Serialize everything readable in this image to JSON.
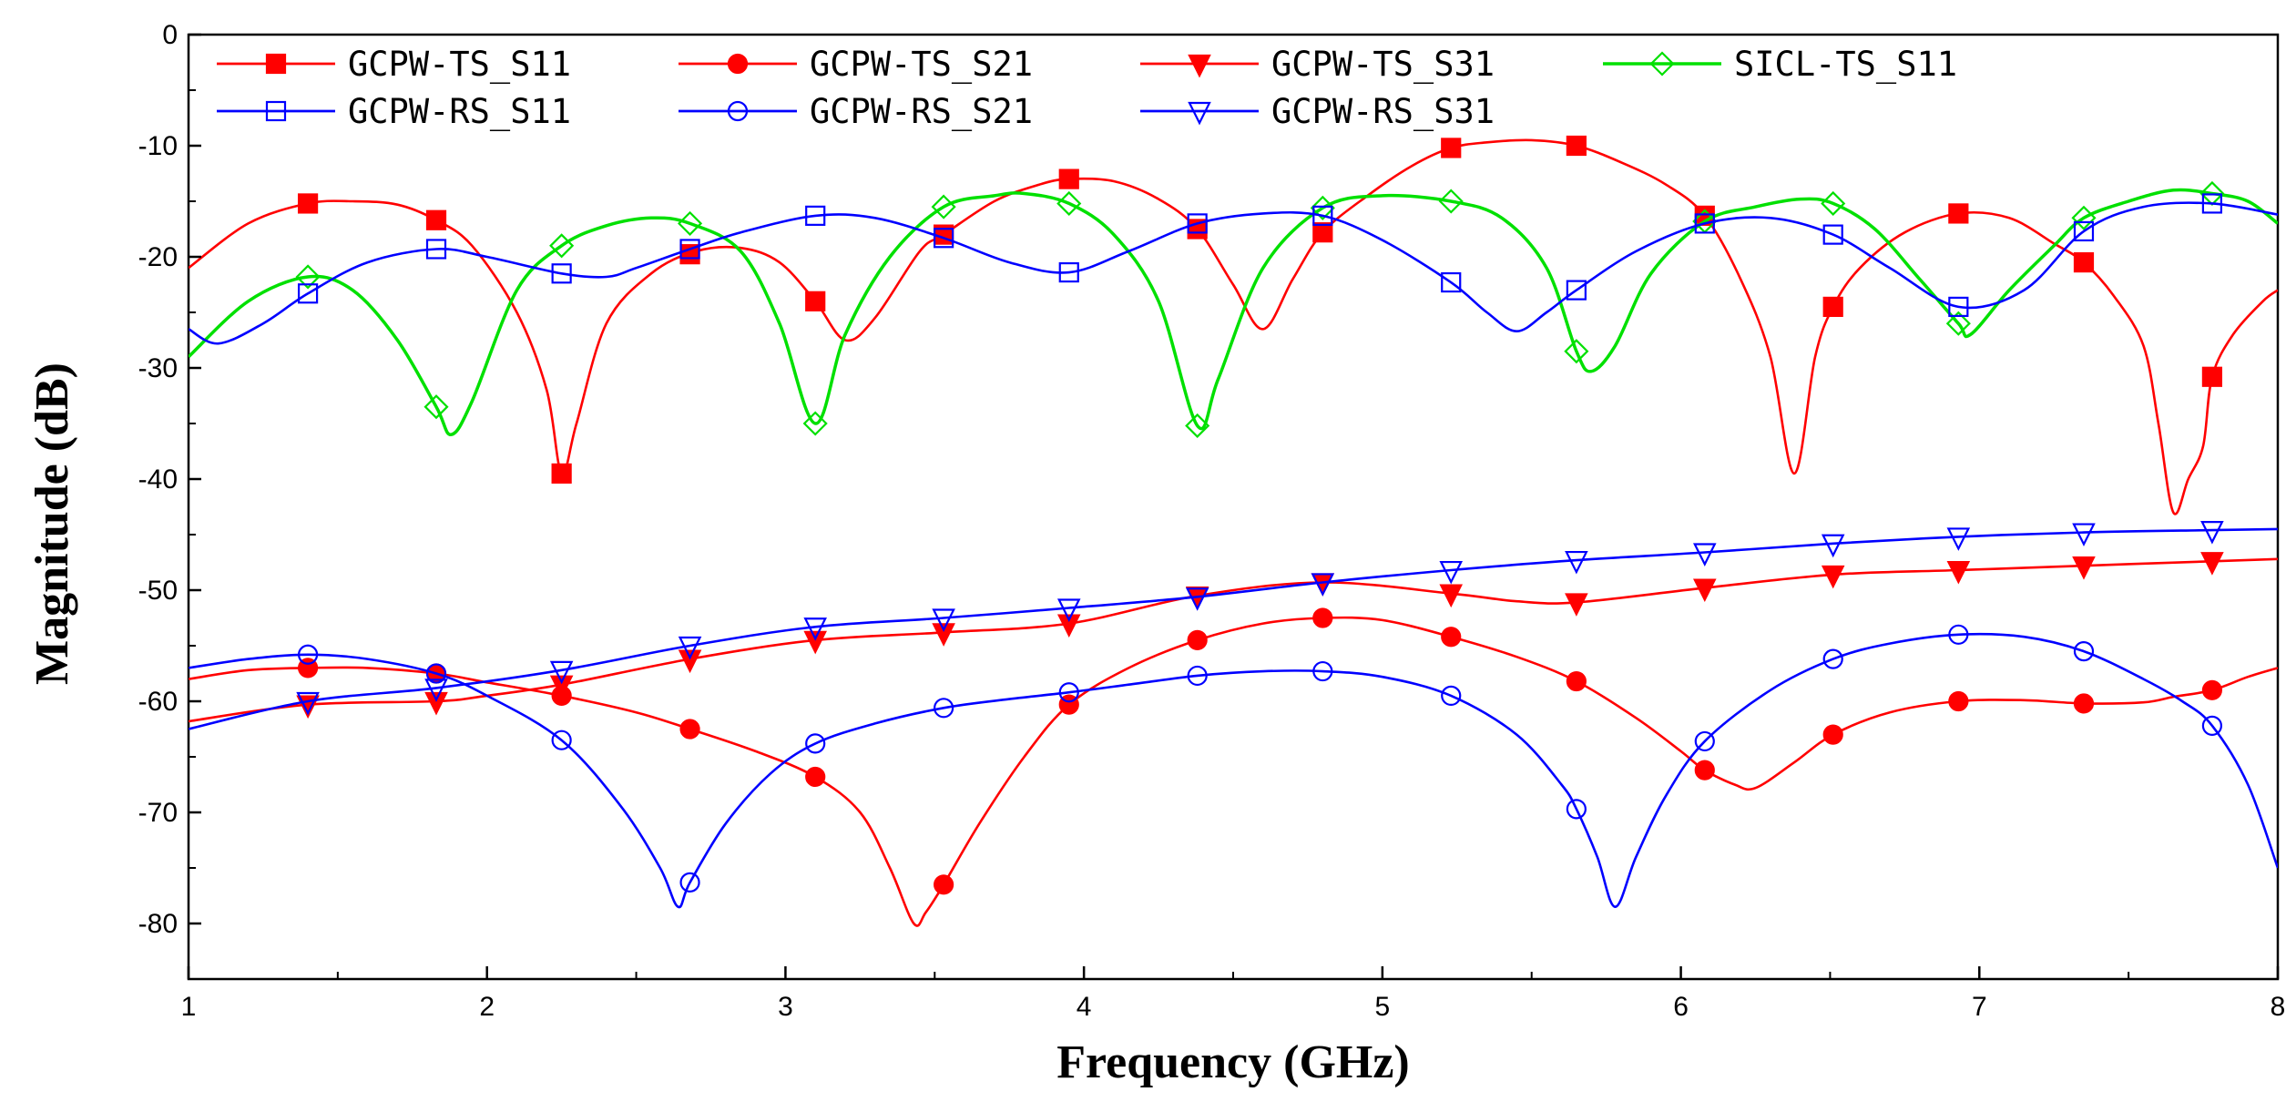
{
  "chart_data": {
    "type": "line",
    "title": "",
    "xlabel": "Frequency (GHz)",
    "ylabel": "Magnitude (dB)",
    "xlim": [
      1,
      8
    ],
    "ylim": [
      -85,
      0
    ],
    "xticks": [
      1,
      2,
      3,
      4,
      5,
      6,
      7,
      8
    ],
    "xtick_labels": [
      "1",
      "2",
      "3",
      "4",
      "5",
      "6",
      "7",
      "8"
    ],
    "yticks": [
      0,
      -10,
      -20,
      -30,
      -40,
      -50,
      -60,
      -70,
      -80
    ],
    "ytick_labels": [
      "0",
      "-10",
      "-20",
      "-30",
      "-40",
      "-50",
      "-60",
      "-70",
      "-80"
    ],
    "grid": false,
    "legend_position": "top",
    "series": [
      {
        "name": "GCPW-TS_S11",
        "color": "#ff0000",
        "marker": "square-filled",
        "x": [
          1.0,
          1.2,
          1.4,
          1.55,
          1.7,
          1.83,
          1.95,
          2.1,
          2.2,
          2.25,
          2.3,
          2.4,
          2.55,
          2.7,
          2.85,
          2.98,
          3.1,
          3.2,
          3.3,
          3.45,
          3.53,
          3.7,
          3.85,
          3.95,
          4.1,
          4.25,
          4.38,
          4.5,
          4.6,
          4.7,
          4.8,
          4.95,
          5.1,
          5.23,
          5.35,
          5.5,
          5.65,
          5.8,
          5.95,
          6.08,
          6.2,
          6.3,
          6.38,
          6.45,
          6.51,
          6.6,
          6.75,
          6.93,
          7.1,
          7.25,
          7.35,
          7.45,
          7.55,
          7.6,
          7.65,
          7.7,
          7.75,
          7.78,
          7.85,
          7.95,
          8.0
        ],
        "y": [
          -21,
          -17,
          -15.2,
          -15,
          -15.3,
          -16.7,
          -19,
          -25,
          -32,
          -39.5,
          -35,
          -26,
          -21.5,
          -19.5,
          -19.2,
          -20.5,
          -24,
          -27.5,
          -25.5,
          -19.5,
          -18,
          -15,
          -13.5,
          -13,
          -13.2,
          -14.8,
          -17.5,
          -22.5,
          -26.5,
          -22,
          -17.8,
          -14.5,
          -11.8,
          -10.2,
          -9.7,
          -9.5,
          -10,
          -11.5,
          -13.5,
          -16.3,
          -22,
          -29,
          -39.5,
          -29,
          -24.5,
          -21,
          -17.8,
          -16.1,
          -16.5,
          -18.8,
          -20.5,
          -23.5,
          -28,
          -35,
          -43,
          -40,
          -37,
          -30.8,
          -27,
          -24,
          -23
        ]
      },
      {
        "name": "GCPW-TS_S21",
        "color": "#ff0000",
        "marker": "circle-filled",
        "x": [
          1.0,
          1.2,
          1.4,
          1.6,
          1.83,
          2.0,
          2.25,
          2.5,
          2.68,
          2.9,
          3.1,
          3.25,
          3.35,
          3.43,
          3.47,
          3.53,
          3.65,
          3.8,
          3.95,
          4.15,
          4.38,
          4.6,
          4.8,
          5.0,
          5.23,
          5.45,
          5.65,
          5.85,
          6.0,
          6.08,
          6.18,
          6.25,
          6.38,
          6.51,
          6.7,
          6.93,
          7.15,
          7.35,
          7.55,
          7.65,
          7.78,
          7.9,
          8.0
        ],
        "y": [
          -58,
          -57.2,
          -57,
          -57,
          -57.5,
          -58.3,
          -59.5,
          -61,
          -62.5,
          -64.5,
          -66.8,
          -70,
          -75,
          -80,
          -79,
          -76.5,
          -71,
          -65,
          -60.3,
          -57,
          -54.5,
          -53,
          -52.5,
          -52.7,
          -54.2,
          -56,
          -58.2,
          -61.5,
          -64.5,
          -66.2,
          -67.5,
          -67.8,
          -65.5,
          -63,
          -61,
          -60,
          -59.9,
          -60.2,
          -60.1,
          -59.6,
          -59,
          -57.8,
          -57
        ]
      },
      {
        "name": "GCPW-TS_S31",
        "color": "#ff0000",
        "marker": "triangle-down-filled",
        "x": [
          1.0,
          1.4,
          1.83,
          2.0,
          2.25,
          2.68,
          3.1,
          3.53,
          3.95,
          4.38,
          4.8,
          5.23,
          5.45,
          5.65,
          6.08,
          6.51,
          6.93,
          7.35,
          7.78,
          8.0
        ],
        "y": [
          -61.8,
          -60.3,
          -60,
          -59.5,
          -58.5,
          -56.2,
          -54.5,
          -53.8,
          -53,
          -50.5,
          -49.3,
          -50.3,
          -51,
          -51.1,
          -49.8,
          -48.6,
          -48.2,
          -47.8,
          -47.4,
          -47.2
        ]
      },
      {
        "name": "SICL-TS_S11",
        "color": "#00e000",
        "marker": "diamond-open",
        "x": [
          1.0,
          1.2,
          1.4,
          1.55,
          1.7,
          1.83,
          1.88,
          1.95,
          2.1,
          2.25,
          2.4,
          2.55,
          2.68,
          2.85,
          2.98,
          3.1,
          3.2,
          3.35,
          3.53,
          3.7,
          3.8,
          3.95,
          4.1,
          4.25,
          4.38,
          4.45,
          4.6,
          4.8,
          5.0,
          5.23,
          5.4,
          5.55,
          5.65,
          5.7,
          5.78,
          5.9,
          6.08,
          6.25,
          6.4,
          6.51,
          6.65,
          6.8,
          6.93,
          6.97,
          7.1,
          7.25,
          7.35,
          7.5,
          7.65,
          7.78,
          7.9,
          8.0
        ],
        "y": [
          -29,
          -24,
          -21.8,
          -23,
          -27.5,
          -33.5,
          -36,
          -33,
          -23,
          -19,
          -17.2,
          -16.5,
          -17,
          -19.5,
          -26,
          -35,
          -27,
          -20,
          -15.5,
          -14.5,
          -14.3,
          -15.2,
          -18,
          -24,
          -35.2,
          -31,
          -21,
          -15.6,
          -14.5,
          -15,
          -16.5,
          -21,
          -28.5,
          -30.3,
          -28,
          -21.5,
          -16.8,
          -15.5,
          -14.8,
          -15.2,
          -17.5,
          -22,
          -26,
          -27,
          -23,
          -19,
          -16.5,
          -15,
          -14,
          -14.3,
          -15,
          -17
        ]
      },
      {
        "name": "GCPW-RS_S11",
        "color": "#0000ff",
        "marker": "square-open",
        "x": [
          1.0,
          1.1,
          1.25,
          1.4,
          1.6,
          1.83,
          2.0,
          2.25,
          2.4,
          2.5,
          2.68,
          2.85,
          3.1,
          3.3,
          3.53,
          3.75,
          3.95,
          4.15,
          4.38,
          4.6,
          4.8,
          5.0,
          5.23,
          5.35,
          5.45,
          5.55,
          5.65,
          5.85,
          6.08,
          6.3,
          6.51,
          6.7,
          6.93,
          7.15,
          7.35,
          7.55,
          7.78,
          8.0
        ],
        "y": [
          -26.5,
          -27.8,
          -26,
          -23.3,
          -20.5,
          -19.3,
          -20,
          -21.5,
          -21.8,
          -21,
          -19.3,
          -17.8,
          -16.3,
          -16.5,
          -18.3,
          -20.5,
          -21.4,
          -19.5,
          -17,
          -16.1,
          -16.3,
          -18.5,
          -22.3,
          -25,
          -26.7,
          -25,
          -23,
          -19.5,
          -17,
          -16.5,
          -18,
          -21,
          -24.5,
          -23,
          -17.7,
          -15.5,
          -15.2,
          -16.2
        ]
      },
      {
        "name": "GCPW-RS_S21",
        "color": "#0000ff",
        "marker": "circle-open",
        "x": [
          1.0,
          1.2,
          1.4,
          1.6,
          1.83,
          2.0,
          2.25,
          2.45,
          2.58,
          2.64,
          2.68,
          2.8,
          2.95,
          3.1,
          3.3,
          3.53,
          3.75,
          3.95,
          4.15,
          4.38,
          4.6,
          4.8,
          5.0,
          5.23,
          5.45,
          5.6,
          5.65,
          5.72,
          5.78,
          5.85,
          5.95,
          6.08,
          6.3,
          6.51,
          6.7,
          6.93,
          7.15,
          7.35,
          7.55,
          7.68,
          7.78,
          7.9,
          8.0
        ],
        "y": [
          -57,
          -56.2,
          -55.8,
          -56.2,
          -57.5,
          -59.5,
          -63.5,
          -69.5,
          -75,
          -78.5,
          -76.3,
          -71,
          -66.5,
          -63.8,
          -62,
          -60.6,
          -59.8,
          -59.2,
          -58.5,
          -57.7,
          -57.3,
          -57.3,
          -57.8,
          -59.5,
          -63,
          -67.5,
          -69.7,
          -74,
          -78.5,
          -74,
          -68.5,
          -63.6,
          -59,
          -56.2,
          -54.8,
          -54,
          -54.2,
          -55.5,
          -58,
          -60,
          -62.2,
          -67.5,
          -75
        ]
      },
      {
        "name": "GCPW-RS_S31",
        "color": "#0000ff",
        "marker": "triangle-down-open",
        "x": [
          1.0,
          1.4,
          1.83,
          2.25,
          2.68,
          3.1,
          3.53,
          3.95,
          4.38,
          4.8,
          5.23,
          5.65,
          6.08,
          6.51,
          6.93,
          7.35,
          7.78,
          8.0
        ],
        "y": [
          -62.5,
          -60,
          -58.8,
          -57.2,
          -55,
          -53.3,
          -52.5,
          -51.6,
          -50.6,
          -49.3,
          -48.2,
          -47.3,
          -46.6,
          -45.8,
          -45.2,
          -44.8,
          -44.6,
          -44.5
        ]
      }
    ]
  }
}
